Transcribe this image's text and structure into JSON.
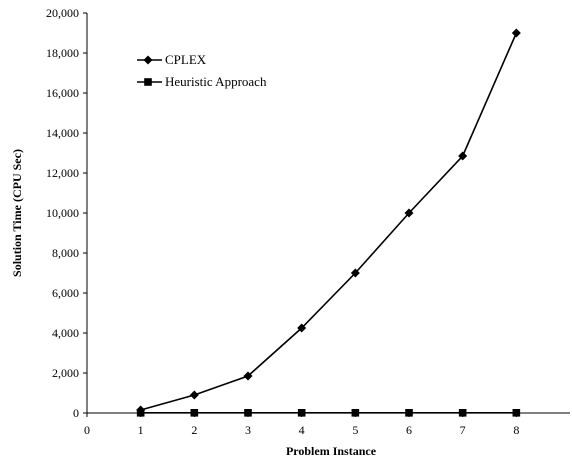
{
  "chart_data": {
    "type": "line",
    "title": "",
    "xlabel": "Problem Instance",
    "ylabel": "Solution Time (CPU Sec)",
    "xlim": [
      0,
      9
    ],
    "ylim": [
      0,
      20000
    ],
    "x_ticks": [
      "0",
      "1",
      "2",
      "3",
      "4",
      "5",
      "6",
      "7",
      "8"
    ],
    "y_ticks": [
      "0",
      "2,000",
      "4,000",
      "6,000",
      "8,000",
      "10,000",
      "12,000",
      "14,000",
      "16,000",
      "18,000",
      "20,000"
    ],
    "grid": false,
    "legend_position": "top-left",
    "x": [
      1,
      2,
      3,
      4,
      5,
      6,
      7,
      8
    ],
    "series": [
      {
        "name": "CPLEX",
        "marker": "diamond",
        "color": "#000000",
        "values": [
          150,
          900,
          1850,
          4250,
          7000,
          10000,
          12850,
          19000
        ]
      },
      {
        "name": "Heuristic Approach",
        "marker": "square",
        "color": "#000000",
        "values": [
          10,
          10,
          10,
          10,
          10,
          10,
          10,
          10
        ]
      }
    ]
  }
}
